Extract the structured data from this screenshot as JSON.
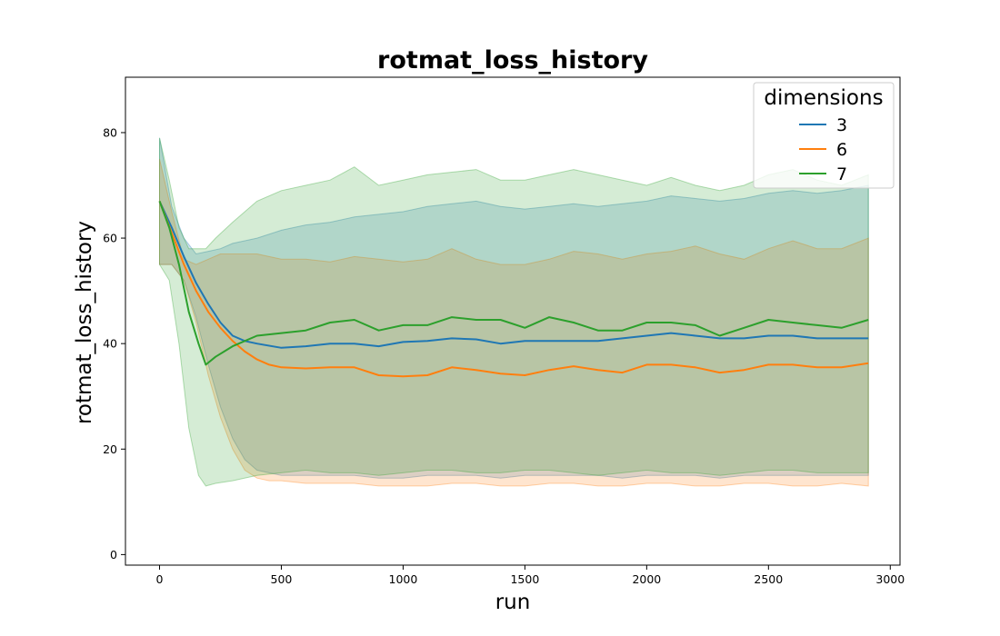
{
  "chart_data": {
    "type": "line",
    "title": "rotmat_loss_history",
    "xlabel": "run",
    "ylabel": "rotmat_loss_history",
    "xlim": [
      -140,
      3040
    ],
    "ylim": [
      -2,
      90.5
    ],
    "xticks": [
      0,
      500,
      1000,
      1500,
      2000,
      2500,
      3000
    ],
    "yticks": [
      0,
      20,
      40,
      60,
      80
    ],
    "grid": false,
    "legend": {
      "title": "dimensions",
      "placement": "top-right"
    },
    "series": [
      {
        "name": "3",
        "color": "#1f77b4",
        "band_alpha": 0.2,
        "x": [
          0,
          50,
          100,
          150,
          200,
          250,
          300,
          350,
          400,
          500,
          600,
          700,
          800,
          900,
          1000,
          1100,
          1200,
          1300,
          1400,
          1500,
          1600,
          1700,
          1800,
          1900,
          2000,
          2100,
          2200,
          2300,
          2400,
          2500,
          2600,
          2700,
          2800,
          2910
        ],
        "mean": [
          67,
          62,
          56.5,
          51.5,
          47.5,
          44,
          41.5,
          40.5,
          40,
          39.2,
          39.5,
          40,
          40,
          39.5,
          40.3,
          40.5,
          41,
          40.8,
          40,
          40.5,
          40.5,
          40.5,
          40.5,
          41,
          41.5,
          42,
          41.5,
          41,
          41,
          41.5,
          41.5,
          41,
          41,
          41
        ],
        "upper": [
          79,
          66,
          60,
          57,
          57.5,
          58,
          59,
          59.5,
          60,
          61.5,
          62.5,
          63,
          64,
          64.5,
          65,
          66,
          66.5,
          67,
          66,
          65.5,
          66,
          66.5,
          66,
          66.5,
          67,
          68,
          67.5,
          67,
          67.5,
          68.5,
          69,
          68.5,
          69,
          70
        ],
        "lower": [
          55,
          55,
          52,
          45,
          36,
          28,
          22,
          18,
          16,
          15,
          15,
          15,
          15,
          14.5,
          14.5,
          15,
          15,
          15,
          14.5,
          15,
          15,
          15,
          15,
          14.5,
          15,
          15,
          15,
          14.5,
          15,
          15,
          15,
          15,
          15,
          15
        ]
      },
      {
        "name": "6",
        "color": "#ff7f0e",
        "band_alpha": 0.2,
        "x": [
          0,
          50,
          100,
          150,
          200,
          250,
          300,
          350,
          400,
          450,
          500,
          600,
          700,
          800,
          900,
          1000,
          1100,
          1200,
          1300,
          1400,
          1500,
          1600,
          1700,
          1800,
          1900,
          2000,
          2100,
          2200,
          2300,
          2400,
          2500,
          2600,
          2700,
          2800,
          2910
        ],
        "mean": [
          67,
          61,
          55,
          50,
          46,
          43,
          40.5,
          38.5,
          37,
          36,
          35.5,
          35.3,
          35.5,
          35.5,
          34,
          33.8,
          34,
          35.5,
          35,
          34.3,
          34,
          35,
          35.7,
          35,
          34.5,
          36,
          36,
          35.5,
          34.5,
          35,
          36,
          36,
          35.5,
          35.5,
          36.3
        ],
        "upper": [
          75,
          65,
          56,
          55,
          56,
          57,
          57,
          57,
          57,
          56.5,
          56,
          56,
          55.5,
          56.5,
          56,
          55.5,
          56,
          58,
          56,
          55,
          55,
          56,
          57.5,
          57,
          56,
          57,
          57.5,
          58.5,
          57,
          56,
          58,
          59.5,
          58,
          58,
          60
        ],
        "lower": [
          55,
          55,
          52,
          44,
          34,
          26,
          20,
          16,
          14.5,
          14,
          14,
          13.5,
          13.5,
          13.5,
          13,
          13,
          13,
          13.5,
          13.5,
          13,
          13,
          13.5,
          13.5,
          13,
          13,
          13.5,
          13.5,
          13,
          13,
          13.5,
          13.5,
          13,
          13,
          13.5,
          13
        ]
      },
      {
        "name": "7",
        "color": "#2ca02c",
        "band_alpha": 0.2,
        "x": [
          0,
          40,
          80,
          120,
          160,
          190,
          230,
          300,
          400,
          500,
          600,
          700,
          800,
          900,
          1000,
          1100,
          1200,
          1300,
          1400,
          1500,
          1600,
          1700,
          1800,
          1900,
          2000,
          2100,
          2200,
          2300,
          2400,
          2500,
          2600,
          2700,
          2800,
          2910
        ],
        "mean": [
          67,
          62,
          55,
          46,
          40,
          36,
          37.5,
          39.5,
          41.5,
          42,
          42.5,
          44,
          44.5,
          42.5,
          43.5,
          43.5,
          45,
          44.5,
          44.5,
          43,
          45,
          44,
          42.5,
          42.5,
          44,
          44,
          43.5,
          41.5,
          43,
          44.5,
          44,
          43.5,
          43,
          44.5
        ],
        "upper": [
          79,
          71,
          62,
          58,
          58,
          58,
          60,
          63,
          67,
          69,
          70,
          71,
          73.5,
          70,
          71,
          72,
          72.5,
          73,
          71,
          71,
          72,
          73,
          72,
          71,
          70,
          71.5,
          70,
          69,
          70,
          72,
          73,
          71,
          70,
          72
        ],
        "lower": [
          55,
          52,
          40,
          24,
          15,
          13,
          13.5,
          14,
          15,
          15.5,
          16,
          15.5,
          15.5,
          15,
          15.5,
          16,
          16,
          15.5,
          15.5,
          16,
          16,
          15.5,
          15,
          15.5,
          16,
          15.5,
          15.5,
          15,
          15.5,
          16,
          16,
          15.5,
          15.5,
          15.5
        ]
      }
    ]
  }
}
